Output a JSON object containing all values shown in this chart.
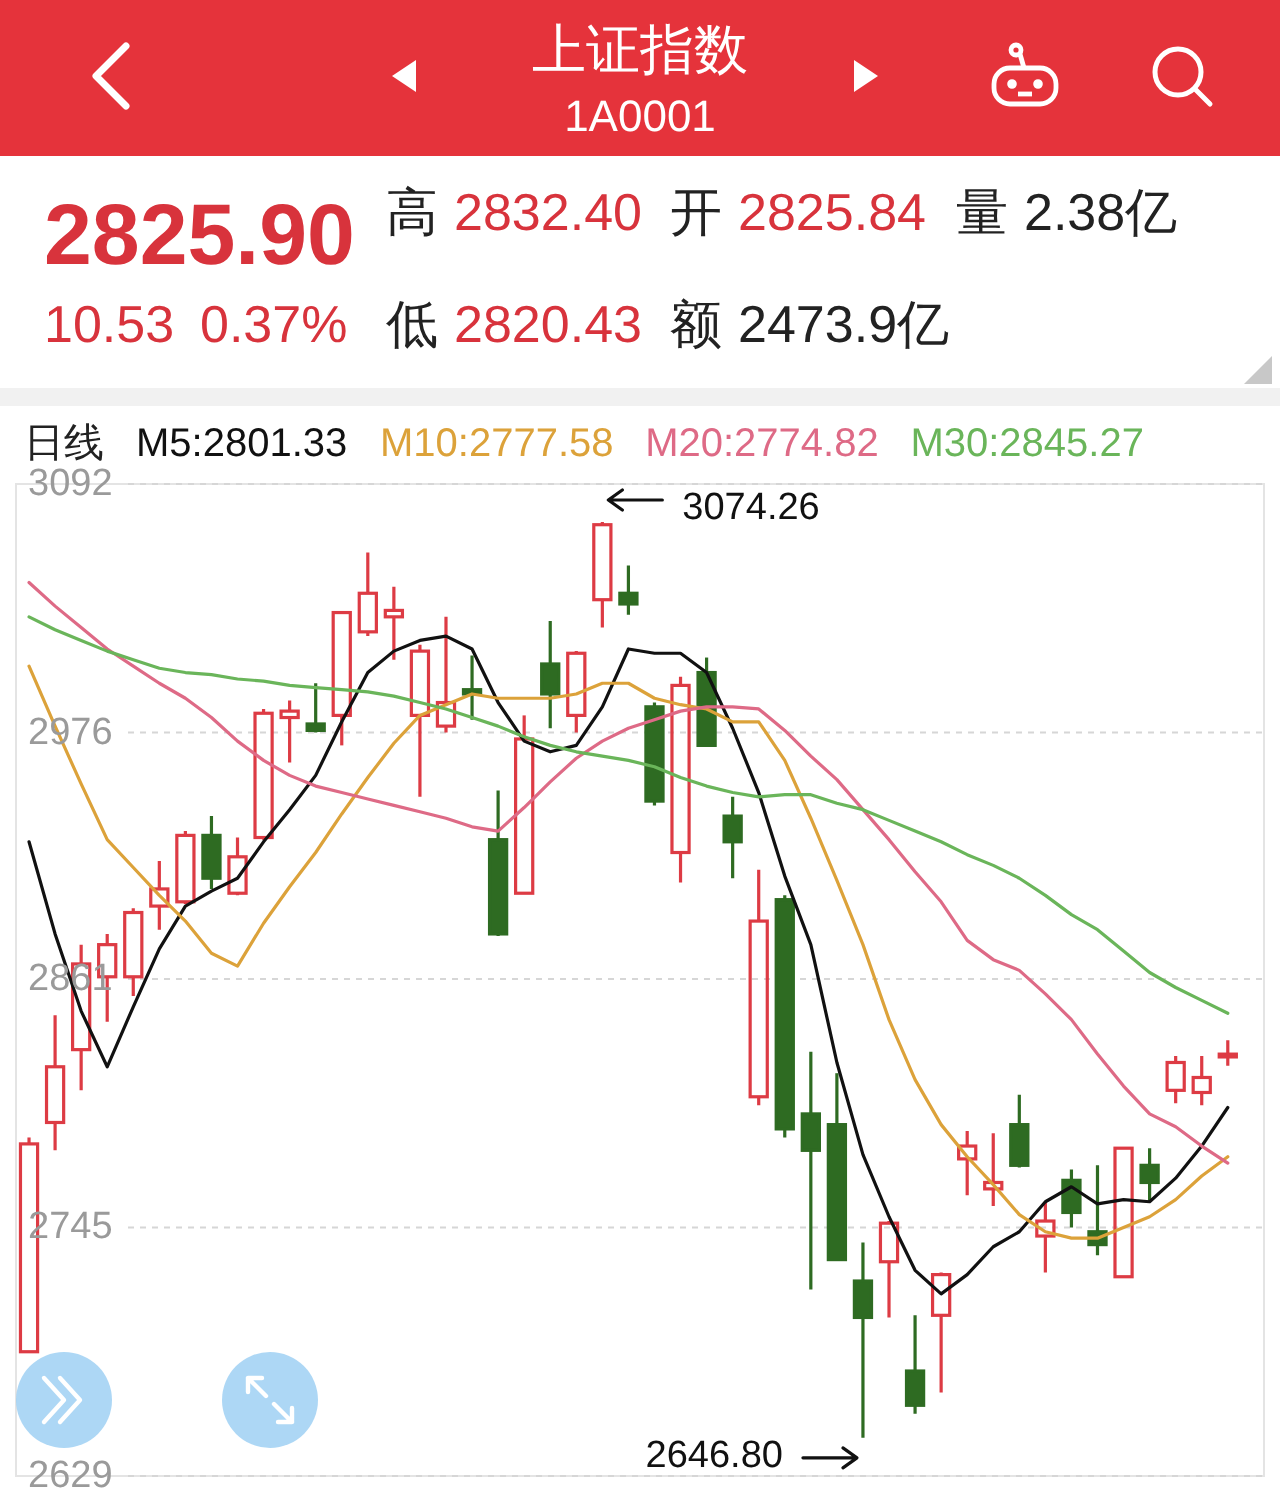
{
  "chart_data": {
    "type": "candlestick",
    "title": "上证指数",
    "subtitle": "1A0001",
    "annotations": [
      "2825.90",
      "10.53",
      "0.37%",
      "高 2832.40",
      "开 2825.84",
      "量 2.38亿",
      "低 2820.43",
      "额 2473.9亿",
      "3074.26",
      "2646.80"
    ],
    "categories": [
      null,
      null,
      null,
      null,
      null,
      null,
      null,
      null,
      null,
      null,
      null,
      null,
      null,
      null,
      null,
      null,
      null,
      null,
      null,
      null,
      null,
      null,
      null,
      null,
      null,
      null,
      null,
      null,
      null,
      null,
      null,
      null,
      null,
      null,
      null,
      null,
      null,
      null,
      null,
      null,
      null,
      null,
      null,
      null,
      null,
      null,
      null
    ],
    "ohlc": [
      [
        2687,
        2787,
        2687,
        2784
      ],
      [
        2794,
        2844,
        2781,
        2820
      ],
      [
        2828,
        2877,
        2809,
        2868
      ],
      [
        2862,
        2882,
        2841,
        2877
      ],
      [
        2862,
        2894,
        2853,
        2892
      ],
      [
        2895,
        2916,
        2884,
        2903
      ],
      [
        2897,
        2930,
        2896,
        2928
      ],
      [
        2928,
        2937,
        2903,
        2908
      ],
      [
        2901,
        2927,
        2900,
        2918
      ],
      [
        2927,
        2987,
        2926,
        2985
      ],
      [
        2983,
        2991,
        2962,
        2986
      ],
      [
        2980,
        2999,
        2976,
        2977
      ],
      [
        2984,
        3032,
        2970,
        3032
      ],
      [
        3023,
        3060,
        3021,
        3041
      ],
      [
        3030,
        3044,
        3010,
        3033
      ],
      [
        2984,
        3017,
        2946,
        3014
      ],
      [
        2979,
        3030,
        2976,
        2990
      ],
      [
        2996,
        3012,
        2982,
        2994
      ],
      [
        2926,
        2949,
        2881,
        2882
      ],
      [
        2901,
        2984,
        2901,
        2973
      ],
      [
        3008,
        3028,
        2978,
        2994
      ],
      [
        2984,
        3014,
        2976,
        3013
      ],
      [
        3038,
        3074.26,
        3025,
        3073
      ],
      [
        3041,
        3054,
        3031,
        3036
      ],
      [
        2988,
        2990,
        2942,
        2944
      ],
      [
        2920,
        3002,
        2906,
        2998
      ],
      [
        3004,
        3011,
        2970,
        2970
      ],
      [
        2937,
        2946,
        2908,
        2925
      ],
      [
        2806,
        2912,
        2802,
        2888
      ],
      [
        2898,
        2900,
        2787,
        2791
      ],
      [
        2798,
        2827,
        2716,
        2781
      ],
      [
        2793,
        2817,
        2730,
        2730
      ],
      [
        2720,
        2738,
        2646.8,
        2703
      ],
      [
        2729,
        2748,
        2703,
        2747
      ],
      [
        2678,
        2704,
        2658,
        2662
      ],
      [
        2704,
        2724,
        2668,
        2723
      ],
      [
        2777,
        2790,
        2760,
        2783
      ],
      [
        2763,
        2789,
        2755,
        2766
      ],
      [
        2793,
        2807,
        2773,
        2774
      ],
      [
        2741,
        2757,
        2724,
        2748
      ],
      [
        2767,
        2772,
        2745,
        2752
      ],
      [
        2743,
        2774,
        2732,
        2737
      ],
      [
        2722,
        2782,
        2722,
        2782
      ],
      [
        2774,
        2782,
        2757,
        2766
      ],
      [
        2809,
        2825,
        2803,
        2822
      ],
      [
        2808,
        2825,
        2802,
        2815
      ],
      [
        2825.84,
        2832.4,
        2820.43,
        2825.9
      ]
    ],
    "colors": [
      "#dd3b44",
      "#dd3b44",
      "#dd3b44",
      "#dd3b44",
      "#dd3b44",
      "#dd3b44",
      "#dd3b44",
      "#2e6b22",
      "#dd3b44",
      "#dd3b44",
      "#dd3b44",
      "#2e6b22",
      "#dd3b44",
      "#dd3b44",
      "#dd3b44",
      "#dd3b44",
      "#dd3b44",
      "#2e6b22",
      "#2e6b22",
      "#dd3b44",
      "#2e6b22",
      "#dd3b44",
      "#dd3b44",
      "#2e6b22",
      "#2e6b22",
      "#dd3b44",
      "#2e6b22",
      "#2e6b22",
      "#dd3b44",
      "#2e6b22",
      "#2e6b22",
      "#2e6b22",
      "#2e6b22",
      "#dd3b44",
      "#2e6b22",
      "#dd3b44",
      "#dd3b44",
      "#dd3b44",
      "#2e6b22",
      "#dd3b44",
      "#2e6b22",
      "#2e6b22",
      "#dd3b44",
      "#2e6b22",
      "#dd3b44",
      "#dd3b44",
      "#dd3b44"
    ],
    "series": [
      {
        "name": "M5:2801.33",
        "type": "line",
        "color": "#111111",
        "values": [
          2925,
          2882,
          2846,
          2820,
          2848,
          2875,
          2895,
          2902,
          2908,
          2925,
          2940,
          2956,
          2981,
          3004,
          3014,
          3019,
          3021,
          3015,
          2990,
          2972,
          2967,
          2970,
          2988,
          3015,
          3013,
          3013,
          3004,
          2978,
          2948,
          2909,
          2877,
          2822,
          2779,
          2750,
          2725,
          2714,
          2723,
          2736,
          2743,
          2757,
          2764,
          2756,
          2758,
          2757,
          2768,
          2783,
          2801
        ]
      },
      {
        "name": "M10:2777.58",
        "type": "line",
        "color": "#dca23a",
        "values": [
          3007,
          2979,
          2952,
          2926,
          2913,
          2900,
          2888,
          2873,
          2867,
          2887,
          2904,
          2920,
          2938,
          2955,
          2971,
          2984,
          2989,
          2994,
          2992,
          2992,
          2992,
          2994,
          2999,
          2999,
          2992,
          2989,
          2987,
          2981,
          2981,
          2963,
          2936,
          2907,
          2877,
          2842,
          2814,
          2793,
          2778,
          2765,
          2751,
          2743,
          2740,
          2740,
          2745,
          2750,
          2758,
          2769,
          2778
        ]
      },
      {
        "name": "M20:2774.82",
        "type": "line",
        "color": "#de6a86",
        "values": [
          3046,
          3035,
          3025,
          3015,
          3007,
          2999,
          2992,
          2983,
          2972,
          2963,
          2956,
          2951,
          2948,
          2945,
          2942,
          2939,
          2936,
          2932,
          2930,
          2941,
          2953,
          2964,
          2972,
          2978,
          2982,
          2986,
          2988,
          2988,
          2987,
          2977,
          2965,
          2954,
          2940,
          2926,
          2911,
          2897,
          2879,
          2870,
          2865,
          2854,
          2842,
          2826,
          2811,
          2798,
          2792,
          2783,
          2775
        ]
      },
      {
        "name": "M30:2845.27",
        "type": "line",
        "color": "#6ab55a",
        "values": [
          3030,
          3024,
          3019,
          3014,
          3010,
          3006,
          3004,
          3003,
          3001,
          3000,
          2998,
          2997,
          2996,
          2995,
          2993,
          2990,
          2987,
          2983,
          2979,
          2974,
          2970,
          2967,
          2965,
          2963,
          2960,
          2955,
          2951,
          2948,
          2946,
          2947,
          2947,
          2943,
          2940,
          2935,
          2930,
          2925,
          2919,
          2914,
          2908,
          2900,
          2891,
          2884,
          2874,
          2864,
          2857,
          2851,
          2845
        ]
      }
    ],
    "ylim": [
      2629,
      3092
    ],
    "yticks": [
      3092,
      2976,
      2861,
      2745,
      2629
    ],
    "grid": "y",
    "tick_labels": "y",
    "legend": "top left",
    "legend_title": "日线"
  }
}
